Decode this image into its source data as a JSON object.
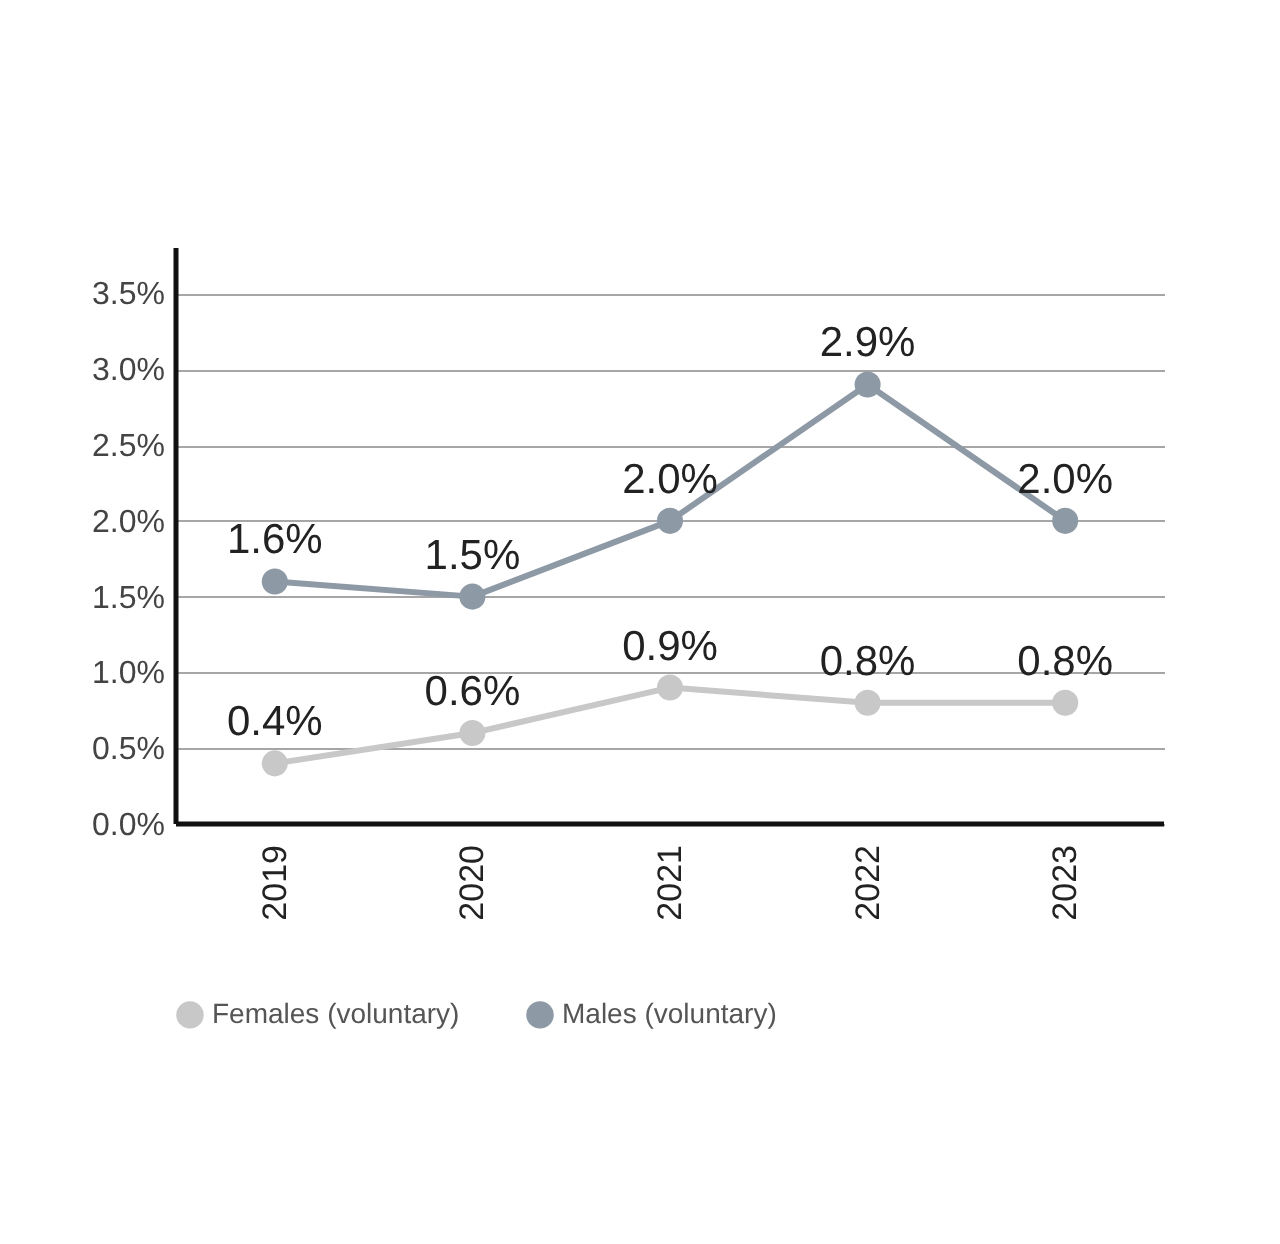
{
  "chart_data": {
    "type": "line",
    "categories": [
      "2019",
      "2020",
      "2021",
      "2022",
      "2023"
    ],
    "series": [
      {
        "name": "Females (voluntary)",
        "color": "#c8c8c8",
        "values": [
          0.4,
          0.6,
          0.9,
          0.8,
          0.8
        ],
        "value_labels": [
          "0.4%",
          "0.6%",
          "0.9%",
          "0.8%",
          "0.8%"
        ]
      },
      {
        "name": "Males (voluntary)",
        "color": "#8e99a6",
        "values": [
          1.6,
          1.5,
          2.0,
          2.9,
          2.0
        ],
        "value_labels": [
          "1.6%",
          "1.5%",
          "2.0%",
          "2.9%",
          "2.0%"
        ]
      }
    ],
    "ylim": [
      0,
      3.8
    ],
    "yticks": [
      {
        "value": 0,
        "label": "0.0%"
      },
      {
        "value": 0.5,
        "label": "0.5%"
      },
      {
        "value": 1,
        "label": "1.0%"
      },
      {
        "value": 1.5,
        "label": "1.5%"
      },
      {
        "value": 2,
        "label": "2.0%"
      },
      {
        "value": 2.5,
        "label": "2.5%"
      },
      {
        "value": 3,
        "label": "3.0%"
      },
      {
        "value": 3.5,
        "label": "3.5%"
      }
    ],
    "grid": "y",
    "legend": "bottom",
    "marker": "circle",
    "line_style": "solid"
  }
}
